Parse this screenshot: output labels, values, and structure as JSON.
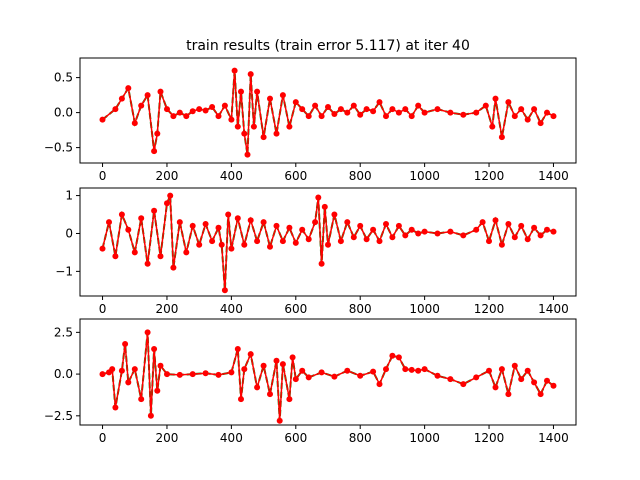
{
  "figure": {
    "title": "train results (train error 5.117) at iter 40"
  },
  "colors": {
    "marker": "#ff0000",
    "target_line": "#008000",
    "axes": "#000000",
    "background": "#ffffff"
  },
  "chart_data": [
    {
      "type": "line",
      "title": "train results (train error 5.117) at iter 40",
      "xlabel": "",
      "ylabel": "",
      "xlim": [
        -70,
        1470
      ],
      "ylim": [
        -0.72,
        0.78
      ],
      "xticks": [
        0,
        200,
        400,
        600,
        800,
        1000,
        1200,
        1400
      ],
      "yticks": [
        -0.5,
        0.0,
        0.5
      ],
      "xtick_labels": [
        "0",
        "200",
        "400",
        "600",
        "800",
        "1000",
        "1200",
        "1400"
      ],
      "ytick_labels": [
        "−0.5",
        "0.0",
        "0.5"
      ],
      "grid": false,
      "x": [
        0,
        40,
        60,
        80,
        100,
        120,
        140,
        160,
        170,
        180,
        200,
        220,
        240,
        260,
        280,
        300,
        320,
        340,
        360,
        380,
        400,
        410,
        420,
        430,
        440,
        450,
        460,
        470,
        480,
        500,
        520,
        540,
        560,
        580,
        600,
        620,
        640,
        660,
        680,
        700,
        720,
        740,
        760,
        780,
        800,
        820,
        840,
        860,
        880,
        900,
        920,
        940,
        960,
        980,
        1000,
        1040,
        1080,
        1120,
        1160,
        1190,
        1210,
        1220,
        1240,
        1260,
        1280,
        1300,
        1320,
        1340,
        1360,
        1380,
        1400
      ],
      "series": [
        {
          "values": [
            -0.1,
            0.05,
            0.2,
            0.35,
            -0.15,
            0.1,
            0.25,
            -0.55,
            -0.3,
            0.3,
            0.05,
            -0.05,
            0.0,
            -0.05,
            0.02,
            0.05,
            0.03,
            0.08,
            -0.05,
            0.1,
            -0.1,
            0.6,
            -0.2,
            0.3,
            -0.3,
            -0.6,
            0.55,
            -0.2,
            0.3,
            -0.35,
            0.2,
            -0.3,
            0.25,
            -0.2,
            0.15,
            0.05,
            -0.05,
            0.1,
            -0.05,
            0.08,
            -0.02,
            0.05,
            0.0,
            0.1,
            -0.03,
            0.05,
            0.02,
            0.15,
            -0.05,
            0.05,
            0.0,
            0.05,
            -0.05,
            0.1,
            0.0,
            0.05,
            0.0,
            -0.03,
            0.0,
            0.1,
            -0.2,
            0.2,
            -0.35,
            0.15,
            -0.05,
            0.05,
            -0.1,
            0.05,
            -0.15,
            0.0,
            -0.05
          ]
        }
      ]
    },
    {
      "type": "line",
      "title": "",
      "xlabel": "",
      "ylabel": "",
      "xlim": [
        -70,
        1470
      ],
      "ylim": [
        -1.65,
        1.2
      ],
      "xticks": [
        0,
        200,
        400,
        600,
        800,
        1000,
        1200,
        1400
      ],
      "yticks": [
        -1,
        0,
        1
      ],
      "xtick_labels": [
        "0",
        "200",
        "400",
        "600",
        "800",
        "1000",
        "1200",
        "1400"
      ],
      "ytick_labels": [
        "−1",
        "0",
        "1"
      ],
      "grid": false,
      "x": [
        0,
        20,
        40,
        60,
        80,
        100,
        120,
        140,
        160,
        180,
        200,
        210,
        220,
        240,
        260,
        280,
        300,
        320,
        340,
        360,
        370,
        380,
        390,
        400,
        420,
        440,
        460,
        480,
        500,
        520,
        540,
        560,
        580,
        600,
        620,
        640,
        660,
        670,
        680,
        690,
        700,
        720,
        740,
        760,
        780,
        800,
        820,
        840,
        860,
        880,
        900,
        920,
        940,
        960,
        980,
        1000,
        1040,
        1080,
        1120,
        1160,
        1180,
        1200,
        1220,
        1240,
        1260,
        1280,
        1300,
        1320,
        1340,
        1360,
        1380,
        1400
      ],
      "series": [
        {
          "values": [
            -0.4,
            0.3,
            -0.6,
            0.5,
            0.1,
            -0.5,
            0.4,
            -0.8,
            0.6,
            -0.6,
            0.8,
            1.0,
            -0.9,
            0.3,
            -0.5,
            0.2,
            -0.3,
            0.25,
            -0.2,
            0.15,
            -0.3,
            -1.5,
            0.5,
            -0.4,
            0.4,
            -0.3,
            0.35,
            -0.2,
            0.3,
            -0.35,
            0.2,
            -0.2,
            0.15,
            -0.25,
            0.1,
            -0.15,
            0.3,
            0.95,
            -0.8,
            0.7,
            -0.3,
            0.5,
            -0.2,
            0.3,
            -0.1,
            0.2,
            -0.15,
            0.1,
            -0.2,
            0.25,
            -0.1,
            0.2,
            -0.05,
            0.1,
            0.0,
            0.05,
            0.0,
            0.05,
            -0.05,
            0.1,
            0.3,
            -0.2,
            0.35,
            -0.3,
            0.25,
            -0.1,
            0.2,
            -0.15,
            0.15,
            -0.05,
            0.1,
            0.05
          ]
        }
      ]
    },
    {
      "type": "line",
      "title": "",
      "xlabel": "",
      "ylabel": "",
      "xlim": [
        -70,
        1470
      ],
      "ylim": [
        -3.05,
        3.3
      ],
      "xticks": [
        0,
        200,
        400,
        600,
        800,
        1000,
        1200,
        1400
      ],
      "yticks": [
        -2.5,
        0.0,
        2.5
      ],
      "xtick_labels": [
        "0",
        "200",
        "400",
        "600",
        "800",
        "1000",
        "1200",
        "1400"
      ],
      "ytick_labels": [
        "−2.5",
        "0.0",
        "2.5"
      ],
      "grid": false,
      "x": [
        0,
        20,
        30,
        40,
        60,
        70,
        80,
        100,
        120,
        140,
        150,
        160,
        170,
        180,
        200,
        240,
        280,
        320,
        360,
        400,
        420,
        430,
        440,
        460,
        480,
        500,
        520,
        540,
        550,
        560,
        580,
        590,
        600,
        620,
        640,
        680,
        720,
        760,
        800,
        840,
        860,
        880,
        900,
        920,
        940,
        960,
        980,
        1000,
        1040,
        1080,
        1120,
        1160,
        1200,
        1220,
        1240,
        1260,
        1280,
        1300,
        1320,
        1340,
        1360,
        1380,
        1400
      ],
      "series": [
        {
          "values": [
            0.0,
            0.1,
            0.3,
            -2.0,
            0.2,
            1.8,
            -0.5,
            0.3,
            -1.5,
            2.5,
            -2.5,
            1.5,
            -1.0,
            0.5,
            0.0,
            -0.05,
            0.0,
            0.05,
            -0.05,
            0.1,
            1.5,
            -1.5,
            0.3,
            1.2,
            -0.8,
            0.5,
            -1.2,
            0.8,
            -2.8,
            0.6,
            -1.5,
            1.0,
            -0.3,
            0.2,
            -0.2,
            0.1,
            -0.15,
            0.2,
            -0.1,
            0.15,
            -0.6,
            0.3,
            1.1,
            1.0,
            0.3,
            0.25,
            0.2,
            0.3,
            -0.1,
            -0.3,
            -0.6,
            -0.2,
            0.2,
            -0.8,
            0.3,
            -1.2,
            0.5,
            -0.3,
            0.2,
            -0.5,
            -1.2,
            -0.4,
            -0.7
          ]
        }
      ]
    }
  ]
}
